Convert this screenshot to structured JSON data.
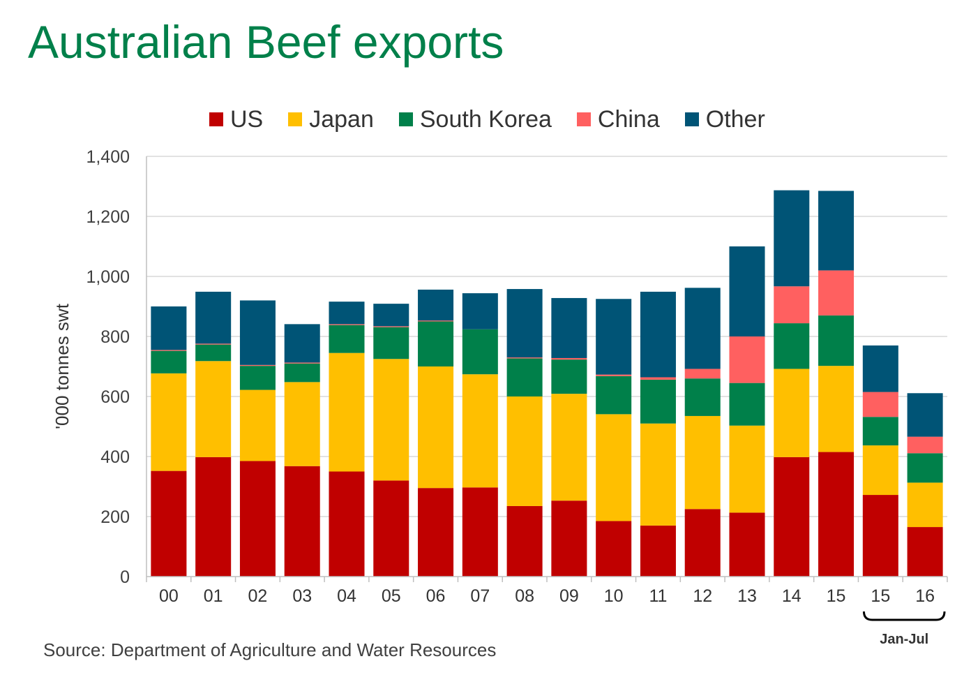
{
  "title": "Australian Beef exports",
  "source": "Source: Department of Agriculture and Water Resources",
  "bracket_label": "Jan-Jul",
  "chart_data": {
    "type": "bar",
    "stacked": true,
    "title": "Australian Beef exports",
    "ylabel": "'000 tonnes swt",
    "xlabel": "",
    "ylim": [
      0,
      1400
    ],
    "yticks": [
      "0",
      "200",
      "400",
      "600",
      "800",
      "1,000",
      "1,200",
      "1,400"
    ],
    "ytick_values": [
      0,
      200,
      400,
      600,
      800,
      1000,
      1200,
      1400
    ],
    "grid": true,
    "legend_position": "top",
    "categories": [
      "00",
      "01",
      "02",
      "03",
      "04",
      "05",
      "06",
      "07",
      "08",
      "09",
      "10",
      "11",
      "12",
      "13",
      "14",
      "15",
      "15",
      "16"
    ],
    "series": [
      {
        "name": "US",
        "color": "#c00000",
        "values": [
          352,
          398,
          385,
          368,
          350,
          320,
          295,
          297,
          235,
          253,
          185,
          170,
          225,
          213,
          398,
          415,
          272,
          165
        ]
      },
      {
        "name": "Japan",
        "color": "#ffbf00",
        "values": [
          325,
          320,
          237,
          280,
          395,
          405,
          405,
          377,
          365,
          356,
          356,
          340,
          310,
          290,
          294,
          287,
          165,
          148
        ]
      },
      {
        "name": "South Korea",
        "color": "#00804a",
        "values": [
          75,
          55,
          80,
          62,
          93,
          106,
          150,
          150,
          127,
          114,
          127,
          146,
          125,
          142,
          152,
          168,
          95,
          98
        ]
      },
      {
        "name": "China",
        "color": "#ff6060",
        "values": [
          3,
          3,
          3,
          3,
          3,
          3,
          3,
          0,
          3,
          5,
          5,
          8,
          32,
          155,
          123,
          150,
          83,
          55
        ]
      },
      {
        "name": "Other",
        "color": "#005476",
        "values": [
          145,
          173,
          215,
          128,
          75,
          75,
          103,
          120,
          228,
          200,
          252,
          285,
          270,
          300,
          320,
          265,
          155,
          145
        ]
      }
    ]
  }
}
